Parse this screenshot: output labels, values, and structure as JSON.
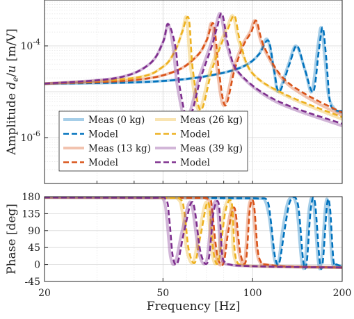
{
  "chart_data": [
    {
      "type": "line",
      "panel": "amplitude",
      "ylabel": "Amplitude $d_e/u$ [m/V]",
      "yscale": "log",
      "xscale": "log",
      "xlim": [
        20,
        200
      ],
      "ylim": [
        1e-07,
        0.001
      ],
      "yticks": [
        {
          "value": 1e-06,
          "label": "10^-6"
        },
        {
          "value": 0.0001,
          "label": "10^-4"
        }
      ],
      "grid": true,
      "legend": {
        "placement": "bottom-left",
        "entries": [
          "Meas (0 kg)",
          "Model",
          "Meas (13 kg)",
          "Model",
          "Meas (26 kg)",
          "Model",
          "Meas (39 kg)",
          "Model"
        ]
      },
      "series": [
        {
          "name": "Meas (0 kg)",
          "color": "#0072bd",
          "style": "solid",
          "mass_kg": 0,
          "x": [
            20,
            40,
            60,
            80,
            95,
            105,
            112,
            118,
            122,
            132,
            140,
            150,
            158,
            165,
            170,
            175,
            180,
            190,
            200
          ],
          "y": [
            1.5e-05,
            1.6e-05,
            1.9e-05,
            2.6e-05,
            3.8e-05,
            6.5e-05,
            0.00014,
            3e-05,
            1e-05,
            4e-05,
            0.0001,
            3e-05,
            1e-05,
            8e-05,
            0.00025,
            5e-05,
            8e-06,
            4e-06,
            3.5e-06
          ]
        },
        {
          "name": "Model",
          "color": "#0072bd",
          "style": "dashed",
          "mass_kg": 0,
          "x": [
            20,
            40,
            60,
            80,
            95,
            105,
            113,
            118,
            123,
            133,
            141,
            150,
            160,
            167,
            172,
            177,
            182,
            190,
            200
          ],
          "y": [
            1.5e-05,
            1.6e-05,
            1.9e-05,
            2.6e-05,
            3.8e-05,
            6.5e-05,
            0.00013,
            3e-05,
            1e-05,
            4e-05,
            0.0001,
            3e-05,
            1e-05,
            8e-05,
            0.00025,
            5e-05,
            6e-06,
            4e-06,
            3.8e-06
          ]
        },
        {
          "name": "Meas (13 kg)",
          "color": "#d95319",
          "style": "solid",
          "mass_kg": 13,
          "x": [
            20,
            40,
            55,
            65,
            70,
            73,
            76,
            80,
            86,
            92,
            98,
            102,
            108,
            125,
            150,
            200
          ],
          "y": [
            1.5e-05,
            1.8e-05,
            2.8e-05,
            6e-05,
            0.00013,
            0.0003,
            3e-05,
            5e-06,
            3e-05,
            0.0001,
            0.0002,
            0.00035,
            0.0001,
            2e-05,
            8e-06,
            3e-06
          ]
        },
        {
          "name": "Model",
          "color": "#d95319",
          "style": "dashed",
          "mass_kg": 13,
          "x": [
            20,
            40,
            55,
            65,
            70,
            74,
            77,
            81,
            87,
            93,
            99,
            103,
            109,
            125,
            150,
            200
          ],
          "y": [
            1.5e-05,
            1.8e-05,
            2.8e-05,
            6e-05,
            0.00013,
            0.0003,
            3e-05,
            5e-06,
            3e-05,
            0.0001,
            0.0002,
            0.00035,
            0.0001,
            2.2e-05,
            9e-06,
            3.5e-06
          ]
        },
        {
          "name": "Meas (26 kg)",
          "color": "#edb120",
          "style": "solid",
          "mass_kg": 26,
          "x": [
            20,
            40,
            50,
            55,
            58,
            60,
            62,
            66,
            72,
            78,
            82,
            86,
            90,
            100,
            130,
            200
          ],
          "y": [
            1.5e-05,
            2e-05,
            3.5e-05,
            8e-05,
            0.0002,
            0.0004,
            3e-05,
            4e-06,
            3e-05,
            0.00012,
            0.00025,
            0.00045,
            0.00012,
            2.5e-05,
            8e-06,
            2.5e-06
          ]
        },
        {
          "name": "Model",
          "color": "#edb120",
          "style": "dashed",
          "mass_kg": 26,
          "x": [
            20,
            40,
            50,
            55,
            58,
            61,
            63,
            67,
            73,
            79,
            83,
            87,
            91,
            100,
            130,
            200
          ],
          "y": [
            1.5e-05,
            2e-05,
            3.5e-05,
            8e-05,
            0.0002,
            0.0004,
            3e-05,
            4e-06,
            3e-05,
            0.00012,
            0.00025,
            0.00045,
            0.00012,
            2.5e-05,
            8.5e-06,
            2.8e-06
          ]
        },
        {
          "name": "Meas (39 kg)",
          "color": "#7e2f8e",
          "style": "solid",
          "mass_kg": 39,
          "x": [
            20,
            35,
            45,
            50,
            52,
            54,
            56,
            60,
            66,
            72,
            75,
            78,
            82,
            90,
            120,
            200
          ],
          "y": [
            1.5e-05,
            2e-05,
            4e-05,
            0.00012,
            0.0003,
            0.0001,
            1.2e-05,
            2.5e-06,
            2e-05,
            0.0001,
            0.00025,
            0.0005,
            0.0001,
            2.5e-05,
            6e-06,
            1.8e-06
          ]
        },
        {
          "name": "Model",
          "color": "#7e2f8e",
          "style": "dashed",
          "mass_kg": 39,
          "x": [
            20,
            35,
            45,
            50,
            52,
            55,
            57,
            61,
            67,
            73,
            76,
            79,
            83,
            90,
            120,
            200
          ],
          "y": [
            1.5e-05,
            2e-05,
            4e-05,
            0.00012,
            0.0003,
            0.0001,
            1.2e-05,
            2.5e-06,
            2e-05,
            0.0001,
            0.00025,
            0.0005,
            0.0001,
            2.6e-05,
            6.5e-06,
            2e-06
          ]
        }
      ]
    },
    {
      "type": "line",
      "panel": "phase",
      "xlabel": "Frequency [Hz]",
      "ylabel": "Phase [deg]",
      "xscale": "log",
      "xlim": [
        20,
        200
      ],
      "ylim": [
        -45,
        180
      ],
      "xticks": [
        {
          "value": 20,
          "label": "20"
        },
        {
          "value": 50,
          "label": "50"
        },
        {
          "value": 100,
          "label": "100"
        },
        {
          "value": 200,
          "label": "200"
        }
      ],
      "yticks": [
        {
          "value": 180,
          "label": "180"
        },
        {
          "value": 135,
          "label": "135"
        },
        {
          "value": 90,
          "label": "90"
        },
        {
          "value": 45,
          "label": "45"
        },
        {
          "value": 0,
          "label": "0"
        },
        {
          "value": -45,
          "label": "-45"
        }
      ],
      "grid": true,
      "series": [
        {
          "name": "Meas (0 kg)",
          "color": "#0072bd",
          "style": "solid",
          "x": [
            20,
            60,
            90,
            105,
            110,
            114,
            118,
            122,
            126,
            132,
            140,
            146,
            150,
            155,
            160,
            166,
            170,
            176,
            180,
            185,
            190,
            200
          ],
          "y": [
            178,
            177,
            176,
            175,
            170,
            120,
            20,
            5,
            90,
            170,
            160,
            10,
            5,
            150,
            165,
            10,
            5,
            160,
            150,
            10,
            0,
            -5
          ]
        },
        {
          "name": "Model",
          "color": "#0072bd",
          "style": "dashed",
          "x": [
            20,
            60,
            90,
            105,
            112,
            115,
            119,
            123,
            128,
            134,
            142,
            148,
            152,
            157,
            162,
            168,
            172,
            178,
            182,
            187,
            192,
            200
          ],
          "y": [
            178,
            177,
            176,
            175,
            170,
            120,
            20,
            5,
            90,
            170,
            160,
            10,
            5,
            150,
            165,
            10,
            5,
            160,
            150,
            10,
            0,
            -5
          ]
        },
        {
          "name": "Meas (13 kg)",
          "color": "#d95319",
          "style": "solid",
          "x": [
            20,
            60,
            70,
            72,
            74,
            76,
            79,
            82,
            86,
            90,
            94,
            97,
            100,
            103,
            106,
            110,
            130,
            200
          ],
          "y": [
            178,
            177,
            174,
            150,
            60,
            10,
            5,
            90,
            150,
            30,
            10,
            150,
            160,
            40,
            5,
            0,
            -5,
            -8
          ]
        },
        {
          "name": "Model",
          "color": "#d95319",
          "style": "dashed",
          "x": [
            20,
            60,
            71,
            73,
            75,
            77,
            80,
            83,
            87,
            91,
            95,
            98,
            101,
            104,
            107,
            111,
            130,
            200
          ],
          "y": [
            178,
            177,
            174,
            150,
            60,
            10,
            5,
            90,
            150,
            30,
            10,
            150,
            160,
            40,
            5,
            0,
            -5,
            -8
          ]
        },
        {
          "name": "Meas (26 kg)",
          "color": "#edb120",
          "style": "solid",
          "x": [
            20,
            50,
            56,
            58,
            60,
            63,
            66,
            70,
            73,
            76,
            80,
            84,
            86,
            88,
            90,
            95,
            120,
            200
          ],
          "y": [
            178,
            177,
            174,
            140,
            40,
            5,
            80,
            165,
            30,
            10,
            140,
            165,
            40,
            5,
            0,
            -3,
            -6,
            -8
          ]
        },
        {
          "name": "Model",
          "color": "#edb120",
          "style": "dashed",
          "x": [
            20,
            50,
            57,
            59,
            61,
            64,
            67,
            71,
            74,
            77,
            81,
            85,
            87,
            89,
            91,
            96,
            120,
            200
          ],
          "y": [
            178,
            177,
            174,
            140,
            40,
            5,
            80,
            165,
            30,
            10,
            140,
            165,
            40,
            5,
            0,
            -3,
            -6,
            -8
          ]
        },
        {
          "name": "Meas (39 kg)",
          "color": "#7e2f8e",
          "style": "solid",
          "x": [
            20,
            45,
            50,
            51.5,
            53,
            55,
            58,
            62,
            66,
            70,
            73,
            76,
            78,
            80,
            83,
            90,
            120,
            200
          ],
          "y": [
            178,
            177,
            174,
            120,
            20,
            5,
            90,
            165,
            30,
            10,
            140,
            160,
            30,
            5,
            0,
            -3,
            -6,
            -8
          ]
        },
        {
          "name": "Model",
          "color": "#7e2f8e",
          "style": "dashed",
          "x": [
            20,
            45,
            51,
            52.5,
            54,
            56,
            59,
            63,
            67,
            71,
            74,
            77,
            79,
            81,
            84,
            90,
            120,
            200
          ],
          "y": [
            178,
            177,
            174,
            120,
            20,
            5,
            90,
            165,
            30,
            10,
            140,
            160,
            30,
            5,
            0,
            -3,
            -6,
            -8
          ]
        }
      ]
    }
  ]
}
